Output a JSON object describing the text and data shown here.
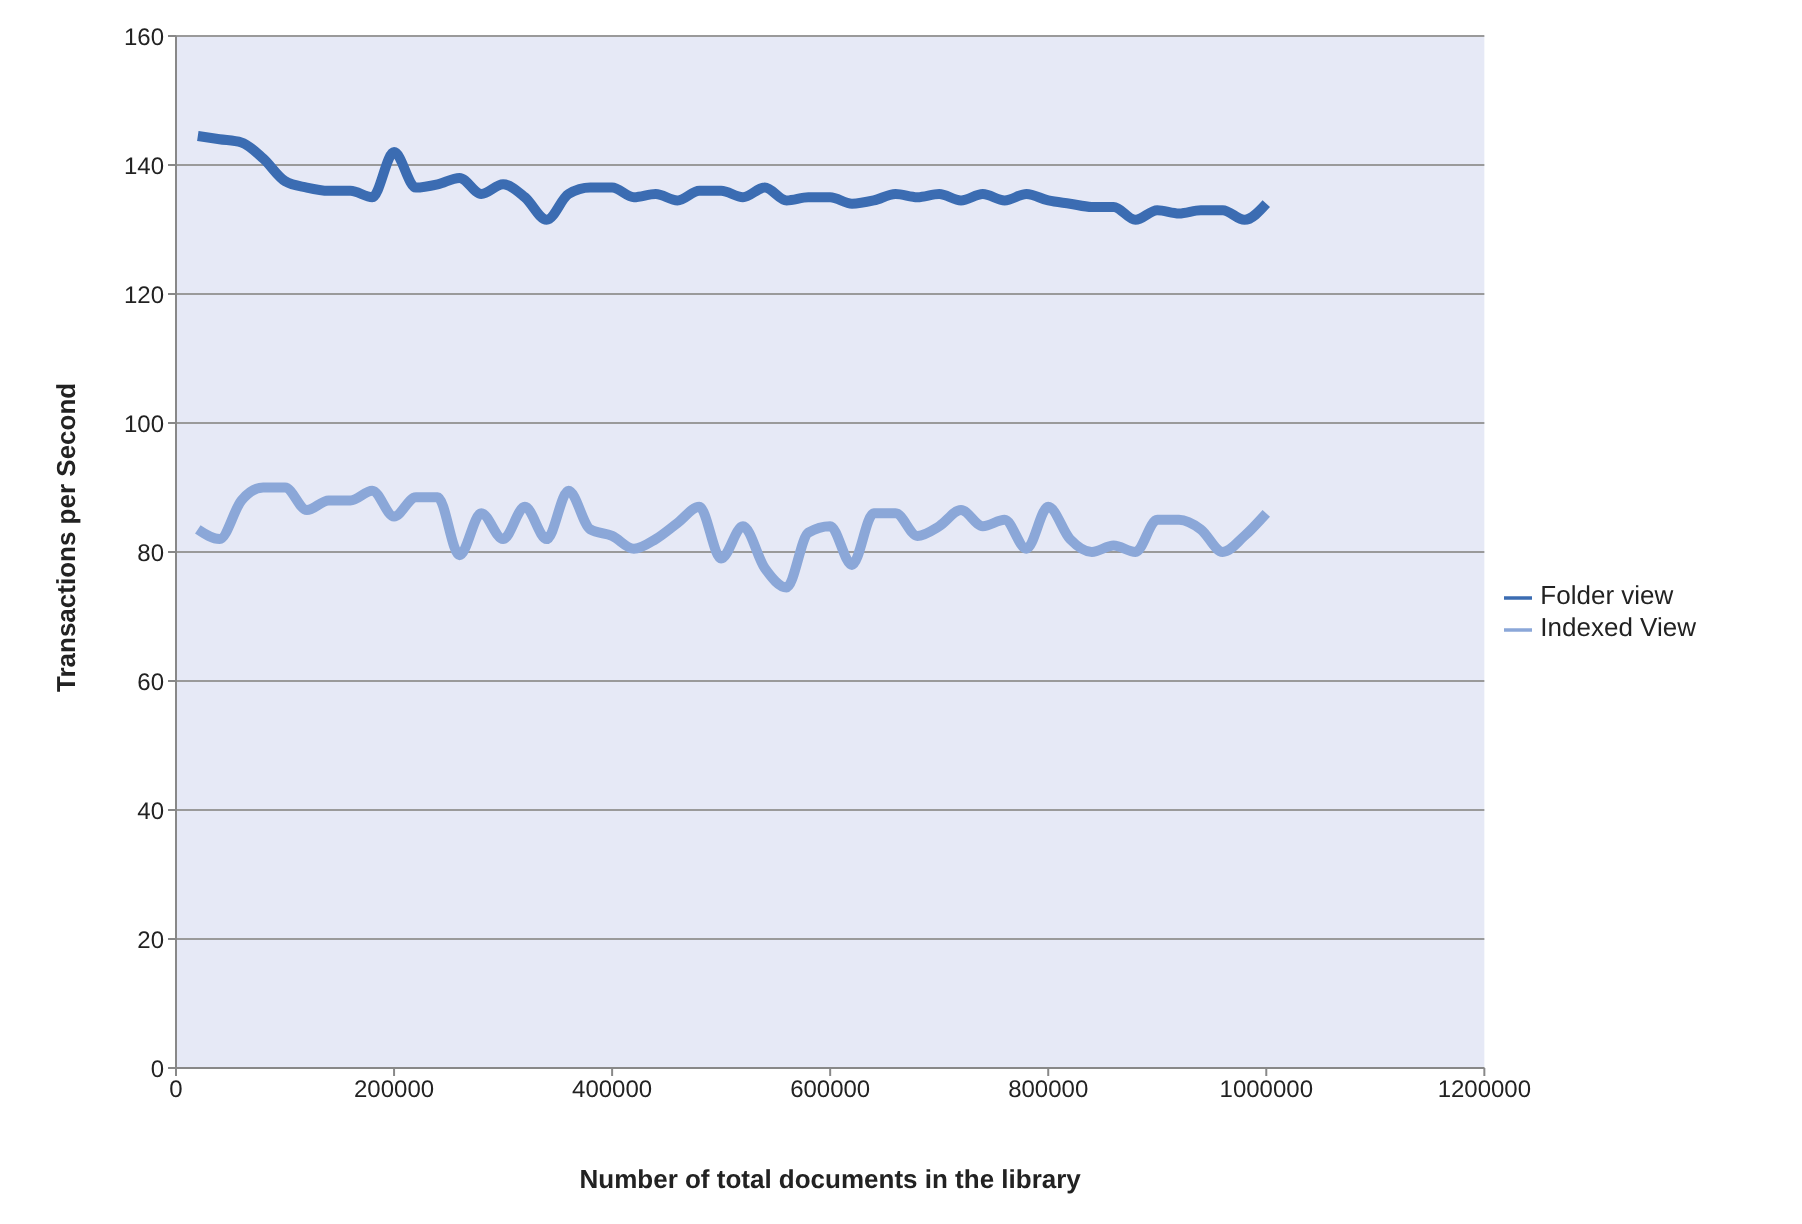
{
  "chart_data": {
    "type": "line",
    "xlabel": "Number of total documents in the library",
    "ylabel": "Transactions per Second",
    "x": [
      20000,
      40000,
      60000,
      80000,
      100000,
      120000,
      140000,
      160000,
      180000,
      200000,
      220000,
      240000,
      260000,
      280000,
      300000,
      320000,
      340000,
      360000,
      380000,
      400000,
      420000,
      440000,
      460000,
      480000,
      500000,
      520000,
      540000,
      560000,
      580000,
      600000,
      620000,
      640000,
      660000,
      680000,
      700000,
      720000,
      740000,
      760000,
      780000,
      800000,
      820000,
      840000,
      860000,
      880000,
      900000,
      920000,
      940000,
      960000,
      980000,
      1000000
    ],
    "series": [
      {
        "name": "Folder view",
        "color": "#3b6cb2",
        "values": [
          144.5,
          144,
          143.5,
          141,
          137.5,
          136.5,
          136,
          136,
          135,
          142,
          136.5,
          137,
          138,
          135.5,
          137,
          135,
          131.5,
          135.5,
          136.5,
          136.5,
          135,
          135.5,
          134.5,
          136,
          136,
          135,
          136.5,
          134.5,
          135,
          135,
          134,
          134.5,
          135.5,
          135,
          135.5,
          134.5,
          135.5,
          134.5,
          135.5,
          134.5,
          134,
          133.5,
          133.5,
          131.5,
          133,
          132.5,
          133,
          133,
          131.5,
          134
        ]
      },
      {
        "name": "Indexed View",
        "color": "#8ba7d8",
        "values": [
          83.5,
          82,
          88,
          90,
          90,
          86.5,
          88,
          88,
          89.5,
          85.5,
          88.5,
          88.5,
          79.5,
          86,
          82,
          87,
          82,
          89.5,
          83.5,
          82.5,
          80.5,
          82,
          84.5,
          87,
          79,
          84,
          77.5,
          74.5,
          83,
          84,
          78,
          86,
          86,
          82.5,
          84,
          86.5,
          84,
          85,
          80.5,
          87,
          82,
          80,
          81,
          80,
          85,
          85,
          83.5,
          80,
          82.5,
          86
        ]
      }
    ],
    "xlim": [
      0,
      1200000
    ],
    "xticks": [
      0,
      200000,
      400000,
      600000,
      800000,
      1000000,
      1200000
    ],
    "ylim": [
      0,
      160
    ],
    "yticks": [
      0,
      20,
      40,
      60,
      80,
      100,
      120,
      140,
      160
    ],
    "grid": "y",
    "legend": "right",
    "marker": "none",
    "line_style": "solid"
  }
}
